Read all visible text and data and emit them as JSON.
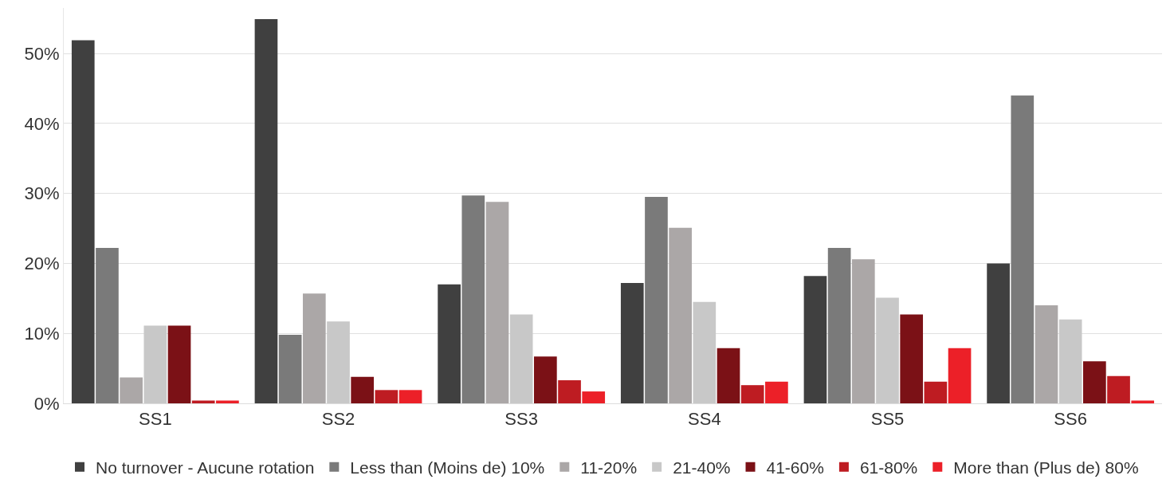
{
  "chart_data": {
    "type": "bar",
    "categories": [
      "SS1",
      "SS2",
      "SS3",
      "SS4",
      "SS5",
      "SS6"
    ],
    "series": [
      {
        "name": "No turnover - Aucune rotation",
        "color": "#404040",
        "values": [
          51.9,
          54.9,
          17.0,
          17.2,
          18.2,
          20.0
        ]
      },
      {
        "name": "Less than (Moins de) 10%",
        "color": "#7a7a7a",
        "values": [
          22.2,
          9.8,
          29.7,
          29.5,
          22.2,
          44.0
        ]
      },
      {
        "name": "11-20%",
        "color": "#aba7a7",
        "values": [
          3.7,
          15.7,
          28.8,
          25.1,
          20.6,
          14.0
        ]
      },
      {
        "name": "21-40%",
        "color": "#c8c8c8",
        "values": [
          11.1,
          11.7,
          12.7,
          14.5,
          15.1,
          12.0
        ]
      },
      {
        "name": "41-60%",
        "color": "#7b1116",
        "values": [
          11.1,
          3.8,
          6.7,
          7.9,
          12.7,
          6.0
        ]
      },
      {
        "name": "61-80%",
        "color": "#be1c22",
        "values": [
          0.4,
          1.9,
          3.3,
          2.6,
          3.1,
          3.9
        ]
      },
      {
        "name": "More than (Plus de) 80%",
        "color": "#ec2028",
        "values": [
          0.4,
          1.9,
          1.7,
          3.1,
          7.9,
          0.4
        ]
      }
    ],
    "ylim": [
      0,
      56.5
    ],
    "yticks": [
      {
        "value": 0,
        "label": "0%"
      },
      {
        "value": 10,
        "label": "10%"
      },
      {
        "value": 20,
        "label": "20%"
      },
      {
        "value": 30,
        "label": "30%"
      },
      {
        "value": 40,
        "label": "40%"
      },
      {
        "value": 50,
        "label": "50%"
      }
    ],
    "grid": "y",
    "legend": "bottom"
  }
}
